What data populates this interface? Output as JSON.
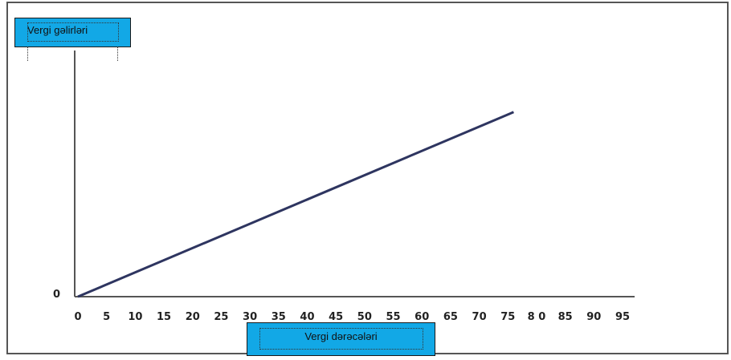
{
  "chart_data": {
    "type": "line",
    "xlabel": "Vergi dərəcələri",
    "ylabel": "Vergi gəlirləri",
    "y_origin_label": "0",
    "x_tick_labels": [
      "0",
      "5",
      "10",
      "15",
      "20",
      "25",
      "30",
      "35",
      "40",
      "45",
      "50",
      "55",
      "60",
      "65",
      "70",
      "75",
      "8 0",
      "85",
      "90",
      "95"
    ],
    "x_ticks": [
      0,
      5,
      10,
      15,
      20,
      25,
      30,
      35,
      40,
      45,
      50,
      55,
      60,
      65,
      70,
      75,
      80,
      85,
      90,
      95
    ],
    "xlim": [
      0,
      95
    ],
    "series": [
      {
        "color": "#2e3560",
        "x": [
          0,
          76
        ],
        "y": [
          0,
          0.75
        ]
      }
    ],
    "grid": false,
    "colors": {
      "label_box": "#12a8e6",
      "line": "#2e3560"
    }
  }
}
